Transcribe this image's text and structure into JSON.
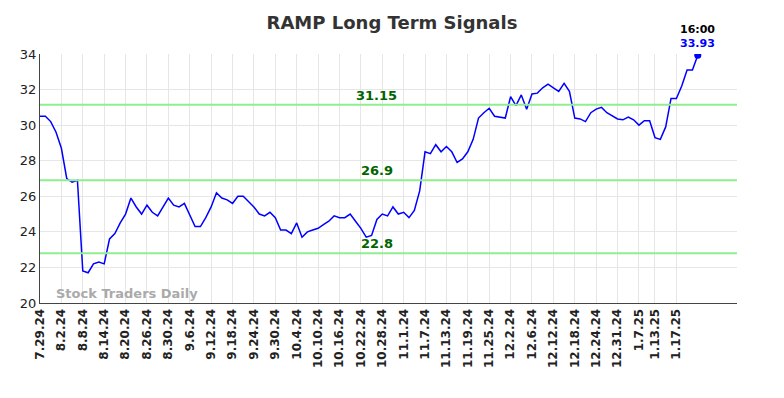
{
  "chart_data": {
    "type": "line",
    "title": "RAMP Long Term Signals",
    "watermark": "Stock Traders Daily",
    "categories": [
      "7.29.24",
      null,
      null,
      null,
      "8.2.24",
      null,
      null,
      null,
      "8.8.24",
      null,
      null,
      null,
      "8.14.24",
      null,
      null,
      null,
      "8.20.24",
      null,
      null,
      null,
      "8.26.24",
      null,
      null,
      null,
      "8.30.24",
      null,
      null,
      null,
      "9.6.24",
      null,
      null,
      null,
      "9.12.24",
      null,
      null,
      null,
      "9.18.24",
      null,
      null,
      null,
      "9.24.24",
      null,
      null,
      null,
      "9.30.24",
      null,
      null,
      null,
      "10.4.24",
      null,
      null,
      null,
      "10.10.24",
      null,
      null,
      null,
      "10.16.24",
      null,
      null,
      null,
      "10.22.24",
      null,
      null,
      null,
      "10.28.24",
      null,
      null,
      null,
      "11.1.24",
      null,
      null,
      null,
      "11.7.24",
      null,
      null,
      null,
      "11.13.24",
      null,
      null,
      null,
      "11.19.24",
      null,
      null,
      null,
      "11.25.24",
      null,
      null,
      null,
      "12.2.24",
      null,
      null,
      null,
      "12.6.24",
      null,
      null,
      null,
      "12.12.24",
      null,
      null,
      null,
      "12.18.24",
      null,
      null,
      null,
      "12.24.24",
      null,
      null,
      null,
      "12.31.24",
      null,
      null,
      null,
      "1.7.25",
      null,
      null,
      "1.13.25",
      null,
      null,
      null,
      "1.17.25",
      null,
      null,
      null,
      null
    ],
    "series": [
      {
        "name": "RAMP",
        "color": "#0000ff",
        "values": [
          30.5,
          30.5,
          30.2,
          29.6,
          28.7,
          27.0,
          26.8,
          26.9,
          21.8,
          21.7,
          22.2,
          22.3,
          22.2,
          23.6,
          23.9,
          24.5,
          25.0,
          25.9,
          25.4,
          25.0,
          25.5,
          25.1,
          24.9,
          25.4,
          25.9,
          25.5,
          25.4,
          25.6,
          24.9,
          24.3,
          24.3,
          24.8,
          25.4,
          26.2,
          25.9,
          25.8,
          25.6,
          26.0,
          26.0,
          25.7,
          25.4,
          25.0,
          24.9,
          25.1,
          24.8,
          24.1,
          24.1,
          23.9,
          24.5,
          23.7,
          24.0,
          24.1,
          24.2,
          24.4,
          24.6,
          24.9,
          24.8,
          24.8,
          25.0,
          24.6,
          24.2,
          23.7,
          23.8,
          24.7,
          25.0,
          24.9,
          25.4,
          25.0,
          25.1,
          24.8,
          25.2,
          26.3,
          28.5,
          28.4,
          28.9,
          28.5,
          28.8,
          28.5,
          27.9,
          28.1,
          28.5,
          29.2,
          30.4,
          30.7,
          30.95,
          30.5,
          30.45,
          30.4,
          31.6,
          31.1,
          31.7,
          30.9,
          31.75,
          31.8,
          32.1,
          32.3,
          32.1,
          31.9,
          32.35,
          31.9,
          30.4,
          30.35,
          30.2,
          30.7,
          30.9,
          31.0,
          30.7,
          30.5,
          30.35,
          30.3,
          30.45,
          30.3,
          30.0,
          30.25,
          30.25,
          29.3,
          29.2,
          29.9,
          31.5,
          31.5,
          32.2,
          33.1,
          33.1,
          33.93
        ]
      }
    ],
    "reference_lines": [
      {
        "value": 31.15,
        "label": "31.15",
        "color": "#90ee90"
      },
      {
        "value": 26.9,
        "label": "26.9",
        "color": "#90ee90"
      },
      {
        "value": 22.8,
        "label": "22.8",
        "color": "#90ee90"
      }
    ],
    "end_label": {
      "time": "16:00",
      "value_label": "33.93"
    },
    "ylim": [
      20,
      34
    ],
    "yticks": [
      20,
      22,
      24,
      26,
      28,
      30,
      32,
      34
    ],
    "grid": true
  }
}
